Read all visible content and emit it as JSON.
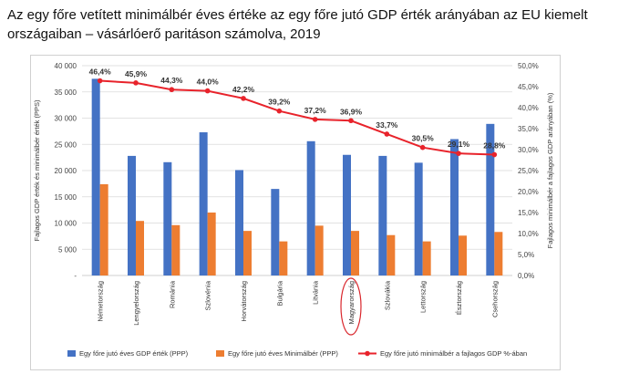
{
  "title": "Az egy főre vetített minimálbér éves értéke az egy főre jutó GDP érték arányában az EU kiemelt országaiban – vásárlóerő paritáson számolva, 2019",
  "chart_data": {
    "type": "bar",
    "title": "Az egy főre vetített minimálbér éves értéke az egy főre jutó GDP érték arányában az EU kiemelt országaiban – vásárlóerő paritáson számolva, 2019",
    "categories": [
      "Németország",
      "Lengyelország",
      "Románia",
      "Szlovénia",
      "Horvátország",
      "Bulgária",
      "Litvánia",
      "Magyarország",
      "Szlovákia",
      "Lettország",
      "Észtország",
      "Csehország"
    ],
    "highlighted_category": "Magyarország",
    "series": [
      {
        "name": "Egy főre jutó éves GDP érték (PPP)",
        "type": "bar",
        "axis": "left",
        "color": "#4472C4",
        "values": [
          37500,
          22800,
          21600,
          27300,
          20100,
          16500,
          25600,
          23000,
          22800,
          21500,
          26000,
          28900
        ]
      },
      {
        "name": "Egy főre jutó éves Minimálbér (PPP)",
        "type": "bar",
        "axis": "left",
        "color": "#ED7D31",
        "values": [
          17400,
          10400,
          9600,
          12000,
          8500,
          6500,
          9500,
          8500,
          7700,
          6500,
          7600,
          8300
        ]
      },
      {
        "name": "Egy főre jutó minimálbér a fajlagos GDP %-ában",
        "type": "line",
        "axis": "right",
        "color": "#E8232B",
        "values": [
          46.4,
          45.9,
          44.3,
          44.0,
          42.2,
          39.2,
          37.2,
          36.9,
          33.7,
          30.5,
          29.1,
          28.8
        ],
        "labels": [
          "46,4%",
          "45,9%",
          "44,3%",
          "44,0%",
          "42,2%",
          "39,2%",
          "37,2%",
          "36,9%",
          "33,7%",
          "30,5%",
          "29,1%",
          "28,8%"
        ]
      }
    ],
    "ylabel": "Fajlagos GDP érték és minimálbér érték (PPS)",
    "y2label": "Fajlagos minimálbér a fajlagos GDP arányában (%)",
    "ylim": [
      0,
      40000
    ],
    "y2lim": [
      0,
      50
    ],
    "yticks": [
      0,
      5000,
      10000,
      15000,
      20000,
      25000,
      30000,
      35000,
      40000
    ],
    "yticklabels": [
      "-",
      "5 000",
      "10 000",
      "15 000",
      "20 000",
      "25 000",
      "30 000",
      "35 000",
      "40 000"
    ],
    "y2ticks": [
      0,
      5,
      10,
      15,
      20,
      25,
      30,
      35,
      40,
      45,
      50
    ],
    "y2ticklabels": [
      "0,0%",
      "5,0%",
      "10,0%",
      "15,0%",
      "20,0%",
      "25,0%",
      "30,0%",
      "35,0%",
      "40,0%",
      "45,0%",
      "50,0%"
    ],
    "legend_position": "bottom",
    "legend": [
      "Egy főre jutó éves GDP érték (PPP)",
      "Egy főre jutó éves Minimálbér (PPP)",
      "Egy főre jutó minimálbér a fajlagos GDP %-ában"
    ]
  }
}
